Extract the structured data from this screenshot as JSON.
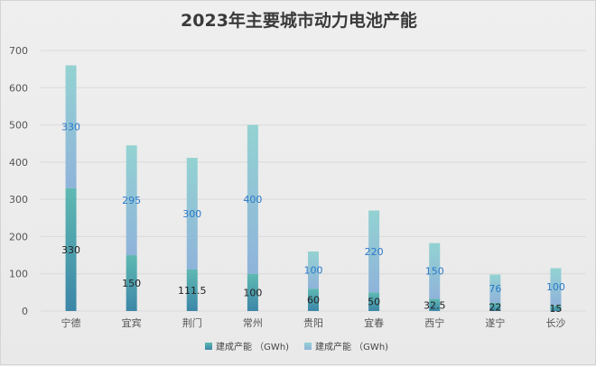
{
  "chart_data": {
    "type": "bar",
    "stacked": true,
    "title": "2023年主要城市动力电池产能",
    "categories": [
      "宁德",
      "宜宾",
      "荆门",
      "常州",
      "贵阳",
      "宜春",
      "西宁",
      "遂宁",
      "长沙"
    ],
    "series": [
      {
        "name": "建成产能 （GWh)",
        "values": [
          330,
          150,
          111.5,
          100,
          60,
          50,
          32.5,
          22,
          15
        ],
        "labels": [
          "330",
          "150",
          "111.5",
          "100",
          "60",
          "50",
          "32.5",
          "22",
          "15"
        ]
      },
      {
        "name": "建成产能 （GWh)",
        "values": [
          330,
          295,
          300,
          400,
          100,
          220,
          150,
          76,
          100
        ],
        "labels": [
          "330",
          "295",
          "300",
          "400",
          "100",
          "220",
          "150",
          "76",
          "100"
        ]
      }
    ],
    "ylim": [
      0,
      700
    ],
    "yticks": [
      "0",
      "100",
      "200",
      "300",
      "400",
      "500",
      "600",
      "700"
    ],
    "grid": true,
    "legend": "bottom",
    "colors": {
      "built_dark": "#3c86a8",
      "built_light": "#5fb9b2",
      "total_dark": "#8fb3da",
      "total_light": "#93d2d2"
    }
  }
}
